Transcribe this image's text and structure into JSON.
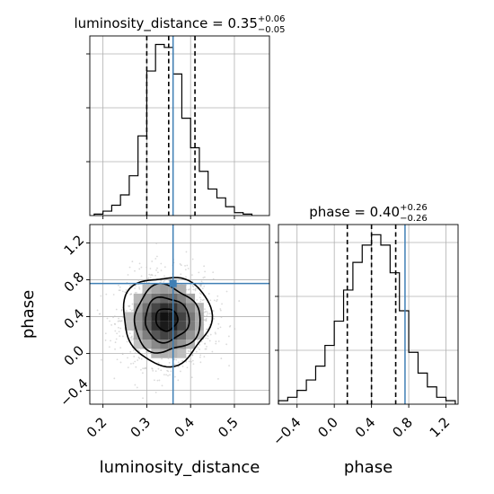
{
  "chart_data": {
    "type": "corner",
    "parameters": [
      "luminosity_distance",
      "phase"
    ],
    "truth": {
      "luminosity_distance": 0.36,
      "phase": 0.76
    },
    "panels": [
      {
        "id": "hist-luminosity_distance",
        "type": "histogram",
        "title": {
          "main": "luminosity_distance = 0.35",
          "sup": "+0.06",
          "sub": "−0.05"
        },
        "xlim": [
          0.17,
          0.58
        ],
        "bin_edges": [
          0.18,
          0.2,
          0.22,
          0.24,
          0.26,
          0.28,
          0.3,
          0.32,
          0.34,
          0.36,
          0.38,
          0.4,
          0.42,
          0.44,
          0.46,
          0.48,
          0.5,
          0.52,
          0.54
        ],
        "counts": [
          0.5,
          1.5,
          3.5,
          7,
          13.5,
          27,
          49,
          58,
          57,
          48,
          33,
          23,
          15,
          9,
          6,
          3,
          1,
          0.5
        ],
        "quantiles": [
          0.3,
          0.35,
          0.41
        ]
      },
      {
        "id": "hist-phase",
        "type": "histogram",
        "title": {
          "main": "phase = 0.40",
          "sup": "+0.26",
          "sub": "−0.26"
        },
        "xlim": [
          -0.6,
          1.33
        ],
        "bin_edges": [
          -0.6,
          -0.5,
          -0.4,
          -0.3,
          -0.2,
          -0.1,
          0.0,
          0.1,
          0.2,
          0.3,
          0.4,
          0.5,
          0.6,
          0.7,
          0.8,
          0.9,
          1.0,
          1.1,
          1.2,
          1.3
        ],
        "counts": [
          1,
          2,
          4,
          7,
          11,
          17,
          24,
          33,
          41,
          46,
          49,
          46,
          38,
          27,
          15,
          9,
          5,
          2,
          1
        ],
        "quantiles": [
          0.14,
          0.4,
          0.66
        ]
      },
      {
        "id": "scatter-2d",
        "type": "2d-density",
        "x": "luminosity_distance",
        "y": "phase",
        "xlim": [
          0.17,
          0.58
        ],
        "ylim": [
          -0.55,
          1.4
        ],
        "center": [
          0.345,
          0.37
        ],
        "spread": [
          0.05,
          0.24
        ]
      }
    ],
    "axes": {
      "luminosity_distance": {
        "label": "luminosity_distance",
        "ticks": [
          0.2,
          0.3,
          0.4,
          0.5
        ],
        "tick_labels": [
          "0.2",
          "0.3",
          "0.4",
          "0.5"
        ]
      },
      "phase_y": {
        "label": "phase",
        "ticks": [
          -0.4,
          0.0,
          0.4,
          0.8,
          1.2
        ],
        "tick_labels": [
          "−0.4",
          "0.0",
          "0.4",
          "0.8",
          "1.2"
        ]
      },
      "phase_x": {
        "label": "phase",
        "ticks": [
          -0.4,
          0.0,
          0.4,
          0.8,
          1.2
        ],
        "tick_labels": [
          "−0.4",
          "0.0",
          "0.4",
          "0.8",
          "1.2"
        ]
      }
    },
    "grid": true,
    "colors": {
      "truth": "#3f7fb5",
      "line": "#000000",
      "grid": "#b0b0b0"
    }
  }
}
